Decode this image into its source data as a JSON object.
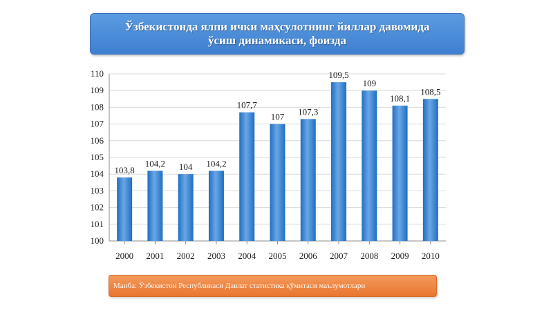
{
  "header": {
    "title_line1": "Ўзбекистонда ялпи ички маҳсулотнинг йиллар давомида",
    "title_line2": "ўсиш динамикаси, фоизда"
  },
  "footer": {
    "source": "Манба: Ўзбекистон Республикаси Давлат статистика қўмитаси маълумотлари"
  },
  "colors": {
    "bar": "#1f6fc2",
    "bar_top": "#6aa6e6",
    "grid": "#d9d9d9",
    "axis": "#8c8c8c"
  },
  "chart_data": {
    "type": "bar",
    "categories": [
      "2000",
      "2001",
      "2002",
      "2003",
      "2004",
      "2005",
      "2006",
      "2007",
      "2008",
      "2009",
      "2010"
    ],
    "values": [
      103.8,
      104.2,
      104,
      104.2,
      107.7,
      107,
      107.3,
      109.5,
      109,
      108.1,
      108.5
    ],
    "value_labels": [
      "103,8",
      "104,2",
      "104",
      "104,2",
      "107,7",
      "107",
      "107,3",
      "109,5",
      "109",
      "108,1",
      "108,5"
    ],
    "yticks": [
      "100",
      "101",
      "102",
      "103",
      "104",
      "105",
      "106",
      "107",
      "108",
      "109",
      "110"
    ],
    "ylim": [
      100,
      110
    ],
    "grid": true,
    "legend": "none"
  }
}
